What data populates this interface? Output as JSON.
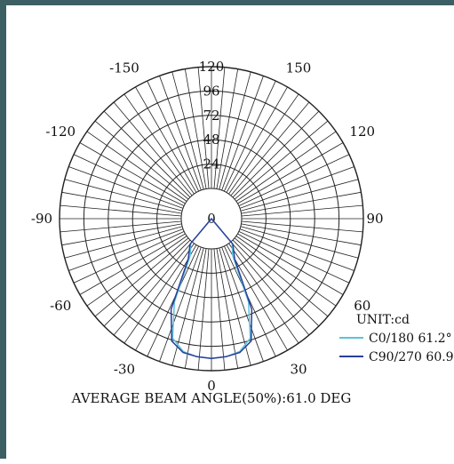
{
  "chart_data": {
    "type": "polar-luminous-intensity",
    "unit_label": "UNIT:cd",
    "radial_ticks": [
      24,
      48,
      72,
      96,
      120
    ],
    "rmax": 120,
    "angle_labels": [
      "-150",
      "150",
      "-120",
      "120",
      "-90",
      "90",
      "-60",
      "60",
      "-30",
      "30",
      "0"
    ],
    "footer": "AVERAGE BEAM ANGLE(50%):61.0 DEG",
    "series": [
      {
        "name": "C0/180 61.2°",
        "color": "#5bc3dc",
        "angles": [
          -40,
          -30,
          -24,
          -18,
          -12,
          -6,
          0,
          6,
          12,
          18,
          24,
          30,
          40
        ],
        "values": [
          2,
          12,
          60,
          94,
          104,
          107,
          108,
          107,
          104,
          94,
          60,
          12,
          2
        ]
      },
      {
        "name": "C90/270 60.9",
        "color": "#2b3f9a",
        "angles": [
          -40,
          -30,
          -24,
          -18,
          -12,
          -6,
          0,
          6,
          12,
          18,
          24,
          30,
          40
        ],
        "values": [
          3,
          16,
          68,
          97,
          105,
          107,
          108,
          107,
          105,
          97,
          68,
          16,
          3
        ]
      }
    ]
  }
}
